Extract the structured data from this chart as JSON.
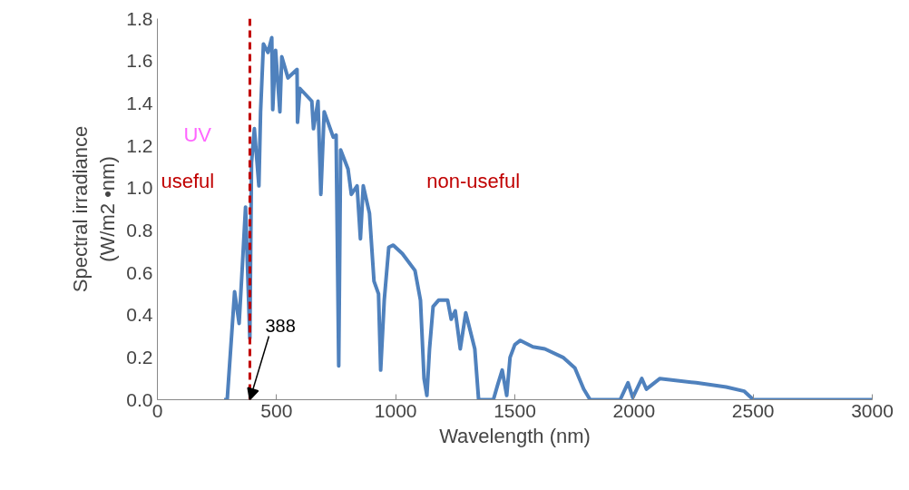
{
  "chart_data": {
    "type": "line",
    "xlabel": "Wavelength (nm)",
    "ylabel": "Spectral irradiance\n(W/m2 •nm)",
    "x": [
      280,
      293,
      324,
      343,
      357,
      370,
      388,
      395,
      407,
      426,
      433,
      445,
      464,
      480,
      484,
      496,
      514,
      522,
      548,
      586,
      588,
      598,
      648,
      655,
      674,
      686,
      700,
      738,
      750,
      761,
      769,
      800,
      814,
      838,
      852,
      864,
      890,
      909,
      928,
      937,
      952,
      971,
      990,
      1028,
      1081,
      1104,
      1119,
      1131,
      1142,
      1157,
      1180,
      1218,
      1233,
      1250,
      1271,
      1294,
      1332,
      1348,
      1410,
      1428,
      1447,
      1466,
      1480,
      1500,
      1523,
      1576,
      1626,
      1702,
      1752,
      1789,
      1816,
      1942,
      1975,
      1995,
      2033,
      2052,
      2109,
      2261,
      2387,
      2463,
      2501,
      3000
    ],
    "series": [
      {
        "color": "#4f81bd",
        "values": [
          0,
          0,
          0.51,
          0.36,
          0.64,
          0.91,
          0.29,
          1.12,
          1.28,
          1.01,
          1.36,
          1.68,
          1.64,
          1.71,
          1.37,
          1.65,
          1.36,
          1.62,
          1.52,
          1.56,
          1.31,
          1.47,
          1.41,
          1.28,
          1.41,
          0.97,
          1.36,
          1.24,
          1.25,
          0.16,
          1.18,
          1.09,
          0.97,
          1.01,
          0.76,
          1.01,
          0.88,
          0.56,
          0.5,
          0.14,
          0.47,
          0.72,
          0.73,
          0.69,
          0.61,
          0.47,
          0.1,
          0.02,
          0.24,
          0.44,
          0.47,
          0.47,
          0.38,
          0.42,
          0.24,
          0.41,
          0.24,
          0,
          0,
          0.07,
          0.14,
          0.02,
          0.2,
          0.26,
          0.28,
          0.25,
          0.24,
          0.2,
          0.15,
          0.05,
          0,
          0,
          0.08,
          0.01,
          0.1,
          0.05,
          0.1,
          0.08,
          0.06,
          0.04,
          0,
          0
        ]
      }
    ],
    "xlim": [
      0,
      3000
    ],
    "xticks": [
      0,
      500,
      1000,
      1500,
      2000,
      2500,
      3000
    ],
    "ylim": [
      0,
      1.8
    ],
    "yticks": [
      {
        "value": 0,
        "label": "0.0"
      },
      {
        "value": 0.2,
        "label": "0.2"
      },
      {
        "value": 0.4,
        "label": "0.4"
      },
      {
        "value": 0.6,
        "label": "0.6"
      },
      {
        "value": 0.8,
        "label": "0.8"
      },
      {
        "value": 1.0,
        "label": "1.0"
      },
      {
        "value": 1.2,
        "label": "1.2"
      },
      {
        "value": 1.4,
        "label": "1.4"
      },
      {
        "value": 1.6,
        "label": "1.6"
      },
      {
        "value": 1.8,
        "label": "1.8"
      }
    ],
    "line_style": "solid",
    "ref_lines": [
      {
        "axis": "x",
        "value": 388,
        "color": "#c00000",
        "line_style": "dashed"
      }
    ],
    "annotations": [
      "UV",
      "useful",
      "non-useful",
      {
        "text": "388",
        "x": 388,
        "y": 0
      }
    ]
  }
}
